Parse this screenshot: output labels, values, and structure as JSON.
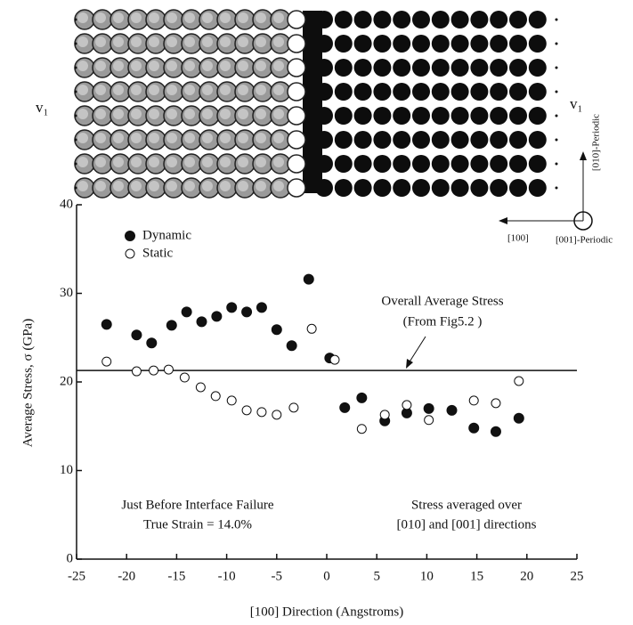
{
  "chart_data": {
    "type": "scatter",
    "xlabel": "[100] Direction (Angstroms)",
    "ylabel": "Average Stress, σ (GPa)",
    "xlim": [
      -25,
      25
    ],
    "xticks": [
      -25,
      -20,
      -15,
      -10,
      -5,
      0,
      5,
      10,
      15,
      20,
      25
    ],
    "ylim": [
      0,
      40
    ],
    "yticks": [
      0,
      10,
      20,
      30,
      40
    ],
    "series": [
      {
        "name": "Dynamic",
        "color": "#111111",
        "filled": true,
        "x": [
          -22,
          -19,
          -17.5,
          -15.5,
          -14,
          -12.5,
          -11,
          -9.5,
          -8,
          -6.5,
          -5,
          -3.5,
          -1.8,
          0.3,
          1.8,
          3.5,
          5.8,
          8,
          10.2,
          12.5,
          14.7,
          16.9,
          19.2
        ],
        "values": [
          26.5,
          25.3,
          24.4,
          26.4,
          27.9,
          26.8,
          27.4,
          28.4,
          27.9,
          28.4,
          25.9,
          24.1,
          31.6,
          22.7,
          17.1,
          18.2,
          15.6,
          16.5,
          17.0,
          16.8,
          14.8,
          14.4,
          15.9
        ]
      },
      {
        "name": "Static",
        "color": "#111111",
        "filled": false,
        "x": [
          -22,
          -19,
          -17.3,
          -15.8,
          -14.2,
          -12.6,
          -11.1,
          -9.5,
          -8,
          -6.5,
          -5,
          -3.3,
          -1.5,
          0.8,
          3.5,
          5.8,
          8,
          10.2,
          14.7,
          16.9,
          19.2
        ],
        "values": [
          22.3,
          21.2,
          21.3,
          21.4,
          20.5,
          19.4,
          18.4,
          17.9,
          16.8,
          16.6,
          16.3,
          17.1,
          26.0,
          22.5,
          14.7,
          16.3,
          17.4,
          15.7,
          17.9,
          17.6,
          20.1
        ]
      }
    ],
    "reference_line": 21.3,
    "annotations": {
      "overall": [
        "Overall Average Stress",
        "(From Fig5.2 )"
      ],
      "left_note": [
        "Just Before Interface Failure",
        "True Strain = 14.0%"
      ],
      "right_note": [
        "Stress averaged over",
        "[010] and [001] directions"
      ]
    },
    "schematic": {
      "left_velocity": "v₁",
      "right_velocity": "v₁",
      "vertical_axis": "[010]-Periodic",
      "horizontal_axis": "[100]",
      "out_of_plane": "[001]-Periodic"
    }
  }
}
